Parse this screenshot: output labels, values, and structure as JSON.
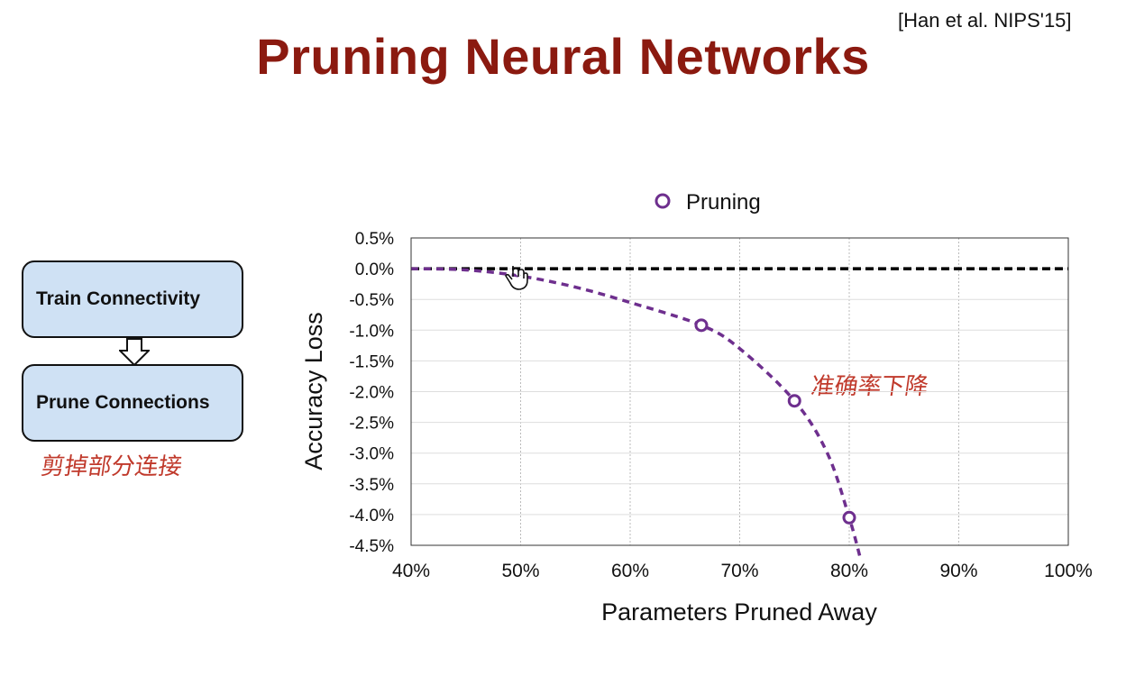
{
  "citation": "[Han et al. NIPS'15]",
  "title": "Pruning Neural Networks",
  "flow": {
    "step1": "Train Connectivity",
    "step2": "Prune Connections",
    "note": "剪掉部分连接"
  },
  "annotation": "准确率下降",
  "colors": {
    "title": "#8b1a10",
    "series": "#6e2f8e",
    "box_fill": "#cfe1f4",
    "handwriting": "#c0392b"
  },
  "chart_data": {
    "type": "line",
    "title": "",
    "xlabel": "Parameters Pruned Away",
    "ylabel": "Accuracy Loss",
    "xlim": [
      40,
      100
    ],
    "ylim": [
      -4.5,
      0.5
    ],
    "x_ticks": [
      "40%",
      "50%",
      "60%",
      "70%",
      "80%",
      "90%",
      "100%"
    ],
    "y_ticks": [
      "0.5%",
      "0.0%",
      "-0.5%",
      "-1.0%",
      "-1.5%",
      "-2.0%",
      "-2.5%",
      "-3.0%",
      "-3.5%",
      "-4.0%",
      "-4.5%"
    ],
    "grid": true,
    "legend_position": "top-center",
    "baseline": {
      "y": 0.0,
      "style": "dashed",
      "color": "#000000"
    },
    "series": [
      {
        "name": "Pruning",
        "points_x": [
          66.5,
          75,
          80
        ],
        "points_y": [
          -0.92,
          -2.15,
          -4.05
        ],
        "curve_x": [
          40,
          45,
          50,
          55,
          60,
          66.5,
          70,
          75,
          78,
          80,
          81
        ],
        "curve_y": [
          0.0,
          -0.02,
          -0.12,
          -0.3,
          -0.55,
          -0.92,
          -1.3,
          -2.15,
          -3.0,
          -4.05,
          -4.7
        ]
      }
    ]
  }
}
